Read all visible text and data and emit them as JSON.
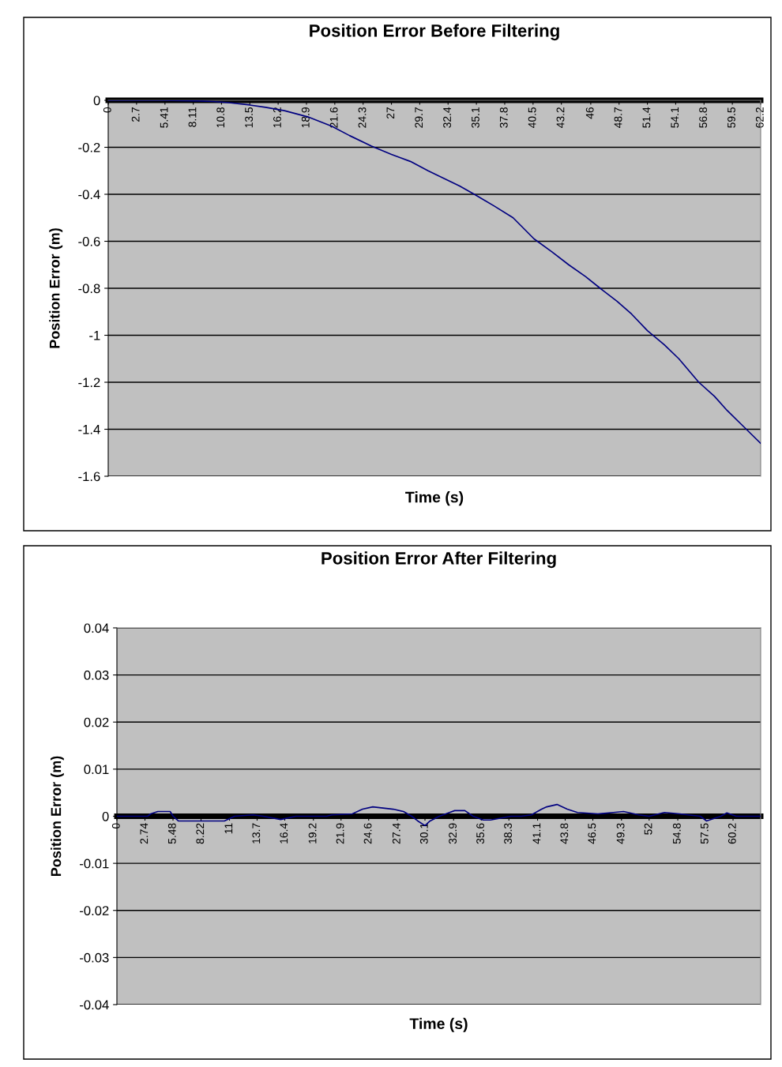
{
  "chart_data": [
    {
      "type": "line",
      "title": "Position Error Before Filtering",
      "xlabel": "Time (s)",
      "ylabel": "Position Error (m)",
      "series": [
        {
          "color": "#000080",
          "x": [
            0,
            5,
            8,
            10,
            11.5,
            13.5,
            15,
            16.8,
            19,
            21.3,
            23,
            25.1,
            27,
            28.8,
            30.5,
            31.9,
            33.5,
            34.9,
            36.8,
            38.6,
            40.6,
            42.3,
            43.9,
            45.5,
            46.9,
            48.5,
            49.9,
            51.4,
            53,
            54.4,
            56.3,
            57.8,
            59,
            60.6,
            62.2
          ],
          "values": [
            0,
            0,
            -0.002,
            -0.005,
            -0.01,
            -0.02,
            -0.03,
            -0.044,
            -0.07,
            -0.11,
            -0.15,
            -0.195,
            -0.23,
            -0.26,
            -0.3,
            -0.33,
            -0.365,
            -0.4,
            -0.45,
            -0.5,
            -0.59,
            -0.645,
            -0.7,
            -0.75,
            -0.8,
            -0.855,
            -0.91,
            -0.98,
            -1.04,
            -1.1,
            -1.2,
            -1.26,
            -1.32,
            -1.39,
            -1.46
          ]
        }
      ],
      "xlim": [
        0,
        62.2
      ],
      "ylim": [
        -1.6,
        0
      ],
      "xticks": [
        0,
        2.7,
        5.41,
        8.11,
        10.8,
        13.5,
        16.2,
        18.9,
        21.6,
        24.3,
        27,
        29.7,
        32.4,
        35.1,
        37.8,
        40.5,
        43.2,
        46,
        48.7,
        51.4,
        54.1,
        56.8,
        59.5,
        62.2
      ],
      "yticks": [
        0,
        -0.2,
        -0.4,
        -0.6,
        -0.8,
        -1,
        -1.2,
        -1.4,
        -1.6
      ],
      "grid": "y",
      "legend": false,
      "marker": "none",
      "line_style": "solid"
    },
    {
      "type": "line",
      "title": "Position Error After Filtering",
      "xlabel": "Time (s)",
      "ylabel": "Position Error (m)",
      "series": [
        {
          "color": "#000080",
          "x": [
            0,
            3.0,
            3.3,
            4.0,
            5.2,
            5.5,
            6.0,
            8.5,
            10.5,
            11.5,
            13.3,
            14.3,
            16.0,
            17.5,
            20.5,
            21.0,
            23.0,
            23.5,
            24.0,
            25.0,
            27.0,
            28.0,
            28.8,
            29.4,
            30.1,
            30.6,
            31.5,
            32.5,
            33.0,
            34.0,
            34.8,
            35.8,
            36.5,
            38.5,
            39.5,
            40.5,
            41.5,
            42.0,
            43.0,
            44.0,
            45.0,
            47.0,
            48.5,
            49.5,
            51.0,
            52.0,
            53.5,
            55.0,
            57.0,
            57.6,
            59.0,
            59.6,
            60.5,
            62.9
          ],
          "values": [
            0,
            0,
            0.0005,
            0.001,
            0.001,
            0,
            -0.001,
            -0.001,
            -0.001,
            0,
            0.0003,
            0,
            -0.0007,
            0,
            0,
            0.0003,
            0.0005,
            0.001,
            0.0015,
            0.002,
            0.0015,
            0.001,
            0,
            -0.001,
            -0.002,
            -0.001,
            0,
            0.0008,
            0.0012,
            0.0012,
            0,
            -0.0008,
            -0.0008,
            0,
            0,
            0.0003,
            0.0015,
            0.002,
            0.0025,
            0.0015,
            0.0008,
            0.0005,
            0.0008,
            0.001,
            0.0003,
            0,
            0.0008,
            0.0005,
            0,
            -0.001,
            0,
            0.0007,
            0,
            0
          ]
        }
      ],
      "xlim": [
        0,
        62.9
      ],
      "ylim": [
        -0.04,
        0.04
      ],
      "xticks": [
        0,
        2.74,
        5.48,
        8.22,
        11,
        13.7,
        16.4,
        19.2,
        21.9,
        24.6,
        27.4,
        30.1,
        32.9,
        35.6,
        38.3,
        41.1,
        43.8,
        46.5,
        49.3,
        52,
        54.8,
        57.5,
        60.2
      ],
      "yticks": [
        0.04,
        0.03,
        0.02,
        0.01,
        0,
        -0.01,
        -0.02,
        -0.03,
        -0.04
      ],
      "grid": "y",
      "legend": false,
      "marker": "none",
      "line_style": "solid"
    }
  ]
}
